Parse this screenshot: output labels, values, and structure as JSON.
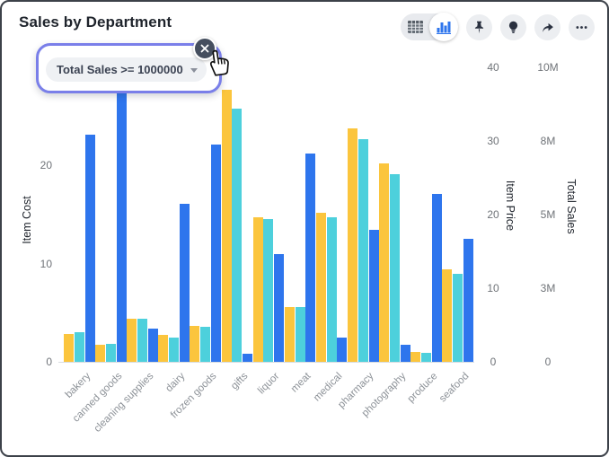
{
  "header": {
    "title": "Sales by Department"
  },
  "toolbar": {
    "view_toggle": {
      "options": [
        "table-view",
        "chart-view"
      ],
      "active": "chart-view"
    },
    "buttons": [
      "pin",
      "insights",
      "share",
      "more-options"
    ],
    "accent_color": "#2e75ed",
    "icon_color": "#2a3140"
  },
  "filter_chip": {
    "label": "Total Sales >= 1000000",
    "selected": true,
    "has_close": true,
    "has_dropdown_caret": true
  },
  "chart_data": {
    "type": "bar",
    "title": "Sales by Department",
    "grid": false,
    "legend": "none",
    "categories": [
      "bakery",
      "canned goods",
      "cleaning supplies",
      "dairy",
      "frozen goods",
      "gifts",
      "liquor",
      "meat",
      "medical",
      "pharmacy",
      "photography",
      "produce",
      "seafood"
    ],
    "series": [
      {
        "name": "Item Cost",
        "axis": "left",
        "color": "#fbc53d",
        "values": [
          2.8,
          1.7,
          4.4,
          2.7,
          3.7,
          27.7,
          14.7,
          5.6,
          15.2,
          23.8,
          20.2,
          1.0,
          9.4
        ]
      },
      {
        "name": "Item Price",
        "axis": "right1",
        "color": "#4dd0dc",
        "values": [
          4.0,
          2.4,
          5.9,
          3.3,
          4.7,
          34.4,
          19.4,
          7.4,
          19.6,
          30.2,
          25.5,
          1.2,
          11.9
        ]
      },
      {
        "name": "Total Sales",
        "axis": "right2",
        "color": "#2e75ed",
        "values": [
          7700000,
          9900000,
          1120000,
          5360000,
          7370000,
          270000,
          3660000,
          7080000,
          810000,
          4470000,
          590000,
          5690000,
          4170000
        ]
      }
    ],
    "axes": {
      "left": {
        "title": "Item Cost",
        "min": 0,
        "max": 30,
        "ticks": [
          {
            "v": 0,
            "label": "0"
          },
          {
            "v": 10,
            "label": "10"
          },
          {
            "v": 20,
            "label": "20"
          }
        ]
      },
      "right1": {
        "title": "Item Price",
        "min": 0,
        "max": 40,
        "ticks": [
          {
            "v": 0,
            "label": "0"
          },
          {
            "v": 10,
            "label": "10"
          },
          {
            "v": 20,
            "label": "20"
          },
          {
            "v": 30,
            "label": "30"
          },
          {
            "v": 40,
            "label": "40"
          }
        ]
      },
      "right2": {
        "title": "Total Sales",
        "min": 0,
        "max": 10000000,
        "ticks": [
          {
            "v": 0,
            "label": "0"
          },
          {
            "v": 2500000,
            "label": "3M"
          },
          {
            "v": 5000000,
            "label": "5M"
          },
          {
            "v": 7500000,
            "label": "8M"
          },
          {
            "v": 10000000,
            "label": "10M"
          }
        ]
      }
    },
    "note": "canned goods Total Sales bar top is hidden behind the filter chip"
  }
}
